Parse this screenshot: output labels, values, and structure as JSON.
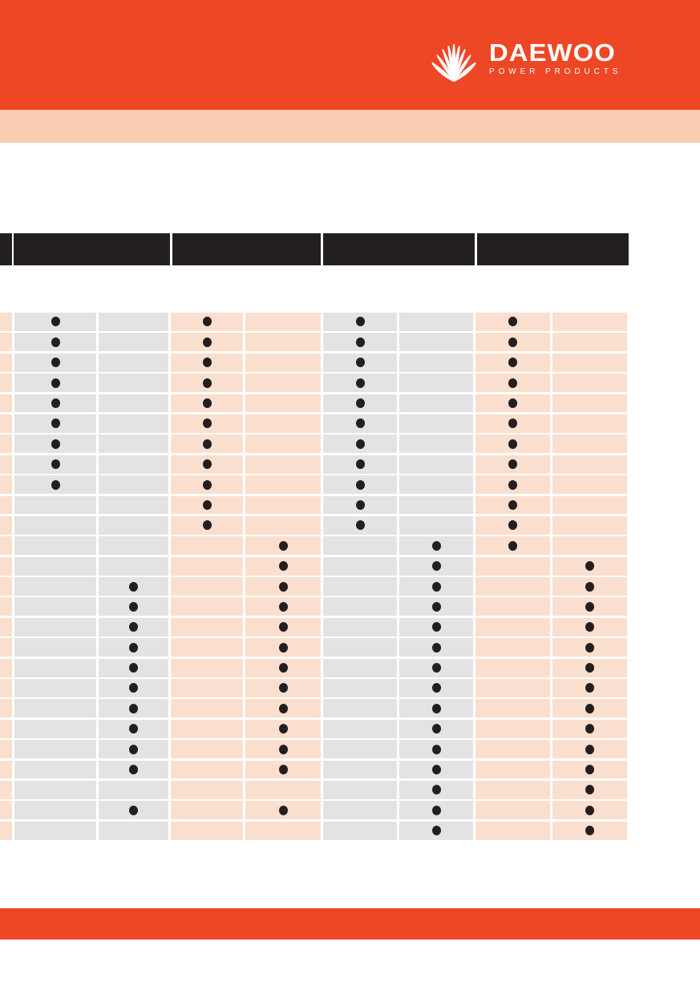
{
  "brand": {
    "name": "DAEWOO",
    "tagline": "POWER PRODUCTS",
    "icon": "daewoo-fan-icon"
  },
  "colors": {
    "orange": "#EE4726",
    "banner_peach": "#FACDB3",
    "cell_peach": "#FBDFCE",
    "cell_gray": "#E3E3E3",
    "ink": "#231F20"
  },
  "sub_banner": {
    "text": ""
  },
  "matrix": {
    "header_groups": [
      {
        "label": ""
      },
      {
        "label": ""
      },
      {
        "label": ""
      },
      {
        "label": ""
      }
    ],
    "columns_per_group": 2,
    "dot_symbol": "●",
    "rows": [
      {
        "dots": [
          1,
          0,
          1,
          0,
          1,
          0,
          1,
          0
        ]
      },
      {
        "dots": [
          1,
          0,
          1,
          0,
          1,
          0,
          1,
          0
        ]
      },
      {
        "dots": [
          1,
          0,
          1,
          0,
          1,
          0,
          1,
          0
        ]
      },
      {
        "dots": [
          1,
          0,
          1,
          0,
          1,
          0,
          1,
          0
        ]
      },
      {
        "dots": [
          1,
          0,
          1,
          0,
          1,
          0,
          1,
          0
        ]
      },
      {
        "dots": [
          1,
          0,
          1,
          0,
          1,
          0,
          1,
          0
        ]
      },
      {
        "dots": [
          1,
          0,
          1,
          0,
          1,
          0,
          1,
          0
        ]
      },
      {
        "dots": [
          1,
          0,
          1,
          0,
          1,
          0,
          1,
          0
        ]
      },
      {
        "dots": [
          1,
          0,
          1,
          0,
          1,
          0,
          1,
          0
        ]
      },
      {
        "dots": [
          0,
          0,
          1,
          0,
          1,
          0,
          1,
          0
        ]
      },
      {
        "dots": [
          0,
          0,
          1,
          0,
          1,
          0,
          1,
          0
        ]
      },
      {
        "dots": [
          0,
          0,
          0,
          1,
          0,
          1,
          1,
          0
        ]
      },
      {
        "dots": [
          0,
          0,
          0,
          1,
          0,
          1,
          0,
          1
        ]
      },
      {
        "dots": [
          0,
          1,
          0,
          1,
          0,
          1,
          0,
          1
        ]
      },
      {
        "dots": [
          0,
          1,
          0,
          1,
          0,
          1,
          0,
          1
        ]
      },
      {
        "dots": [
          0,
          1,
          0,
          1,
          0,
          1,
          0,
          1
        ]
      },
      {
        "dots": [
          0,
          1,
          0,
          1,
          0,
          1,
          0,
          1
        ]
      },
      {
        "dots": [
          0,
          1,
          0,
          1,
          0,
          1,
          0,
          1
        ]
      },
      {
        "dots": [
          0,
          1,
          0,
          1,
          0,
          1,
          0,
          1
        ]
      },
      {
        "dots": [
          0,
          1,
          0,
          1,
          0,
          1,
          0,
          1
        ]
      },
      {
        "dots": [
          0,
          1,
          0,
          1,
          0,
          1,
          0,
          1
        ]
      },
      {
        "dots": [
          0,
          1,
          0,
          1,
          0,
          1,
          0,
          1
        ]
      },
      {
        "dots": [
          0,
          1,
          0,
          1,
          0,
          1,
          0,
          1
        ]
      },
      {
        "dots": [
          0,
          0,
          0,
          0,
          0,
          1,
          0,
          1
        ]
      },
      {
        "dots": [
          0,
          1,
          0,
          1,
          0,
          1,
          0,
          1
        ]
      },
      {
        "dots": [
          0,
          0,
          0,
          0,
          0,
          1,
          0,
          1
        ]
      }
    ]
  },
  "footer": {
    "text": ""
  }
}
